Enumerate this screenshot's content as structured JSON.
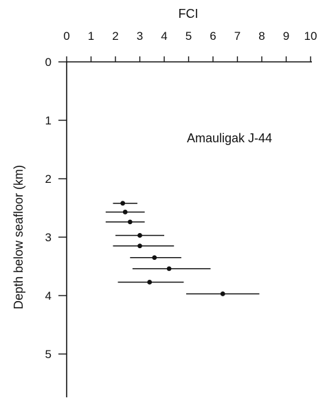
{
  "chart_data": {
    "type": "scatter",
    "title": "",
    "xlabel": "FCI",
    "ylabel": "Depth below seafloor (km)",
    "x_axis_position": "top",
    "xlim": [
      0,
      10
    ],
    "ylim": [
      0,
      5.5
    ],
    "y_inverted": true,
    "x_ticks": [
      "0",
      "1",
      "2",
      "3",
      "4",
      "5",
      "6",
      "7",
      "8",
      "9",
      "10"
    ],
    "y_ticks": [
      "0",
      "1",
      "2",
      "3",
      "4",
      "5"
    ],
    "grid": false,
    "annotation": "Amauligak J-44",
    "series": [
      {
        "points": [
          {
            "x": 2.3,
            "y": 2.42,
            "x_err_low": 1.9,
            "x_err_high": 2.9
          },
          {
            "x": 2.4,
            "y": 2.57,
            "x_err_low": 1.6,
            "x_err_high": 3.2
          },
          {
            "x": 2.6,
            "y": 2.74,
            "x_err_low": 1.6,
            "x_err_high": 3.2
          },
          {
            "x": 3.0,
            "y": 2.97,
            "x_err_low": 2.0,
            "x_err_high": 4.0
          },
          {
            "x": 3.0,
            "y": 3.15,
            "x_err_low": 1.9,
            "x_err_high": 4.4
          },
          {
            "x": 3.6,
            "y": 3.35,
            "x_err_low": 2.6,
            "x_err_high": 4.7
          },
          {
            "x": 4.2,
            "y": 3.54,
            "x_err_low": 2.7,
            "x_err_high": 5.9
          },
          {
            "x": 3.4,
            "y": 3.77,
            "x_err_low": 2.1,
            "x_err_high": 4.8
          },
          {
            "x": 6.4,
            "y": 3.97,
            "x_err_low": 4.9,
            "x_err_high": 7.9
          }
        ]
      }
    ]
  }
}
